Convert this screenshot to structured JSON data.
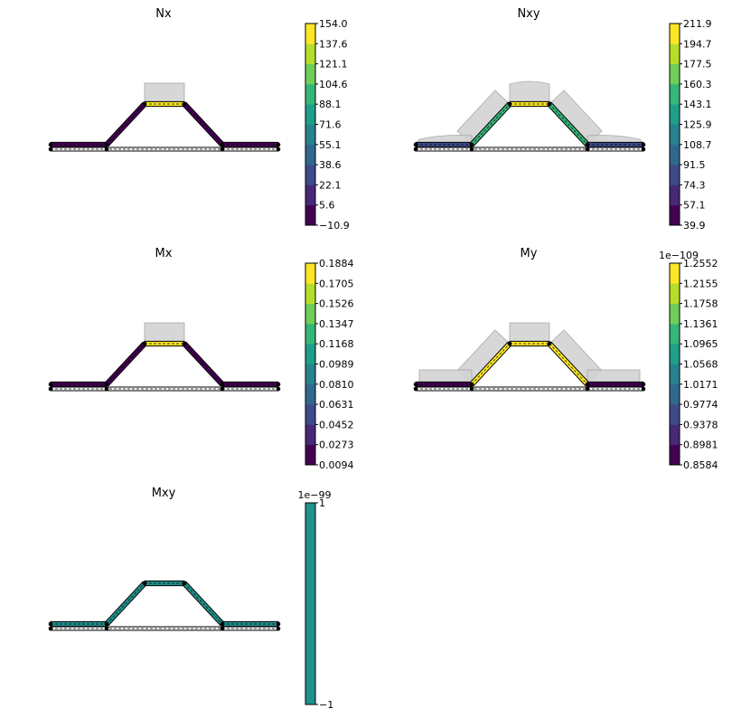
{
  "chart_data": [
    {
      "type": "heatmap",
      "title": "Nx",
      "colorbar": {
        "ticks": [
          "154.0",
          "137.6",
          "121.1",
          "104.6",
          "88.1",
          "71.6",
          "55.1",
          "38.6",
          "22.1",
          "5.6",
          "−10.9"
        ],
        "offset_label": "",
        "min": -10.9,
        "max": 154.0
      },
      "segments": [
        {
          "name": "left-flange",
          "level": 0.0
        },
        {
          "name": "left-web",
          "level": 0.05
        },
        {
          "name": "top",
          "level": 1.0
        },
        {
          "name": "right-web",
          "level": 0.05
        },
        {
          "name": "right-flange",
          "level": 0.0
        }
      ],
      "has_diagram": true,
      "diagram_shape": "top-only"
    },
    {
      "type": "heatmap",
      "title": "Nxy",
      "colorbar": {
        "ticks": [
          "211.9",
          "194.7",
          "177.5",
          "160.3",
          "143.1",
          "125.9",
          "108.7",
          "91.5",
          "74.3",
          "57.1",
          "39.9"
        ],
        "offset_label": "",
        "min": 39.9,
        "max": 211.9
      },
      "segments": [
        {
          "name": "left-flange",
          "level": 0.25
        },
        {
          "name": "left-web",
          "level": 0.6
        },
        {
          "name": "top",
          "level": 1.0
        },
        {
          "name": "right-web",
          "level": 0.6
        },
        {
          "name": "right-flange",
          "level": 0.25
        }
      ],
      "has_diagram": true,
      "diagram_shape": "full-curved"
    },
    {
      "type": "heatmap",
      "title": "Mx",
      "colorbar": {
        "ticks": [
          "0.1884",
          "0.1705",
          "0.1526",
          "0.1347",
          "0.1168",
          "0.0989",
          "0.0810",
          "0.0631",
          "0.0452",
          "0.0273",
          "0.0094"
        ],
        "offset_label": "",
        "min": 0.0094,
        "max": 0.1884
      },
      "segments": [
        {
          "name": "left-flange",
          "level": 0.0
        },
        {
          "name": "left-web",
          "level": 0.05
        },
        {
          "name": "top",
          "level": 1.0
        },
        {
          "name": "right-web",
          "level": 0.05
        },
        {
          "name": "right-flange",
          "level": 0.0
        }
      ],
      "has_diagram": true,
      "diagram_shape": "top-only"
    },
    {
      "type": "heatmap",
      "title": "My",
      "colorbar": {
        "ticks": [
          "1.2552",
          "1.2155",
          "1.1758",
          "1.1361",
          "1.0965",
          "1.0568",
          "1.0171",
          "0.9774",
          "0.9378",
          "0.8981",
          "0.8584"
        ],
        "offset_label": "1e−109",
        "min": 0.8584,
        "max": 1.2552
      },
      "segments": [
        {
          "name": "left-flange",
          "level": 0.0
        },
        {
          "name": "left-web",
          "level": 0.97
        },
        {
          "name": "top",
          "level": 1.0
        },
        {
          "name": "right-web",
          "level": 0.97
        },
        {
          "name": "right-flange",
          "level": 0.0
        }
      ],
      "has_diagram": true,
      "diagram_shape": "full-rect"
    },
    {
      "type": "heatmap",
      "title": "Mxy",
      "colorbar": {
        "ticks": [
          "1",
          "−1"
        ],
        "offset_label": "1e−99",
        "min": -1,
        "max": 1
      },
      "segments": [
        {
          "name": "left-flange",
          "level": 0.5
        },
        {
          "name": "left-web",
          "level": 0.5
        },
        {
          "name": "top",
          "level": 0.5
        },
        {
          "name": "right-web",
          "level": 0.5
        },
        {
          "name": "right-flange",
          "level": 0.5
        }
      ],
      "has_diagram": false,
      "diagram_shape": "none"
    }
  ],
  "colors": {
    "colorbar_bands": [
      "#440154",
      "#482878",
      "#3e4a89",
      "#31688e",
      "#26828e",
      "#1f9e89",
      "#35b779",
      "#6ece58",
      "#b5de2b",
      "#fde725"
    ],
    "single_band": "#21918c",
    "diagram_fill": "#d3d3d3",
    "diagram_edge": "#a0a0a0",
    "node": "#000000"
  }
}
